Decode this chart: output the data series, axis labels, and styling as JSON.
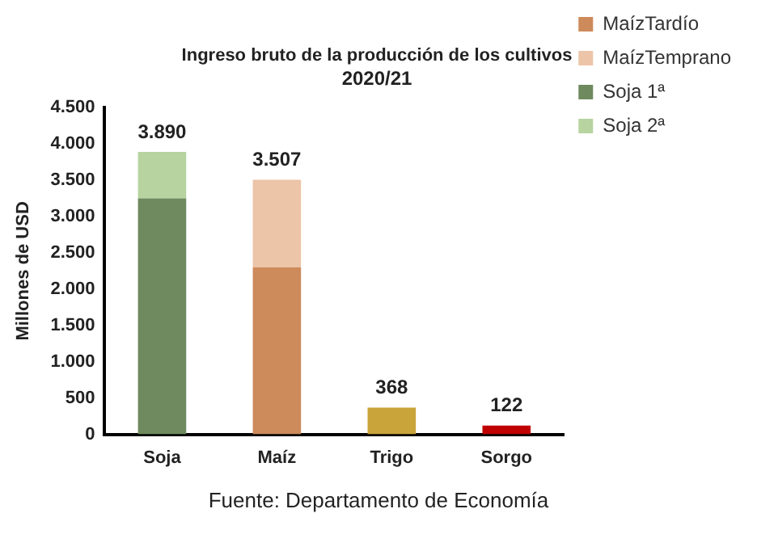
{
  "chart_data": {
    "type": "bar",
    "title": "Ingreso bruto de la producción de los cultivos",
    "subtitle": "2020/21",
    "ylabel": "Millones de USD",
    "categories": [
      "Soja",
      "Maíz",
      "Trigo",
      "Sorgo"
    ],
    "series": [
      {
        "name": "MaízTardío",
        "color": "#cd8a5a",
        "values": [
          null,
          2300,
          null,
          null
        ]
      },
      {
        "name": "MaízTemprano",
        "color": "#ecc4a8",
        "values": [
          null,
          1207,
          null,
          null
        ]
      },
      {
        "name": "Soja 1ª",
        "color": "#6e8a5e",
        "values": [
          3250,
          null,
          null,
          null
        ]
      },
      {
        "name": "Soja 2ª",
        "color": "#b6d3a0",
        "values": [
          640,
          null,
          null,
          null
        ]
      },
      {
        "color": "#c9a43a",
        "values": [
          null,
          null,
          368,
          null
        ]
      },
      {
        "color": "#c00000",
        "values": [
          null,
          null,
          null,
          122
        ]
      }
    ],
    "stacked": true,
    "totals": [
      "3.890",
      "3.507",
      "368",
      "122"
    ],
    "ylim": [
      0,
      4500
    ],
    "yticks": [
      0,
      {
        "value": 500,
        "label": "500"
      },
      {
        "value": 1000,
        "label": "1.000"
      },
      {
        "value": 1500,
        "label": "1.500"
      },
      {
        "value": 2000,
        "label": "2.000"
      },
      {
        "value": 2500,
        "label": "2.500"
      },
      {
        "value": 3000,
        "label": "3.000"
      },
      {
        "value": 3500,
        "label": "3.500"
      },
      {
        "value": 4000,
        "label": "4.000"
      },
      {
        "value": 4500,
        "label": "4.500"
      }
    ],
    "grid": false,
    "legend": "right",
    "annotations": [
      "Fuente: Departamento de Economía"
    ]
  }
}
